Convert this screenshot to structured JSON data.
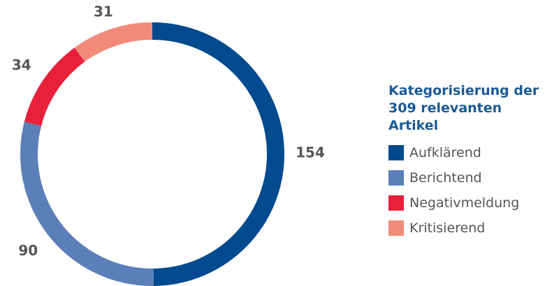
{
  "chart_data": {
    "type": "donut",
    "title": "Kategorisierung der 309 relevanten Artikel",
    "categories": [
      "Aufklärend",
      "Berichtend",
      "Negativmeldung",
      "Kritisierend"
    ],
    "values": [
      154,
      90,
      34,
      31
    ],
    "colors": [
      "#004a8f",
      "#5b7fb8",
      "#e8203b",
      "#f28a7a"
    ]
  }
}
